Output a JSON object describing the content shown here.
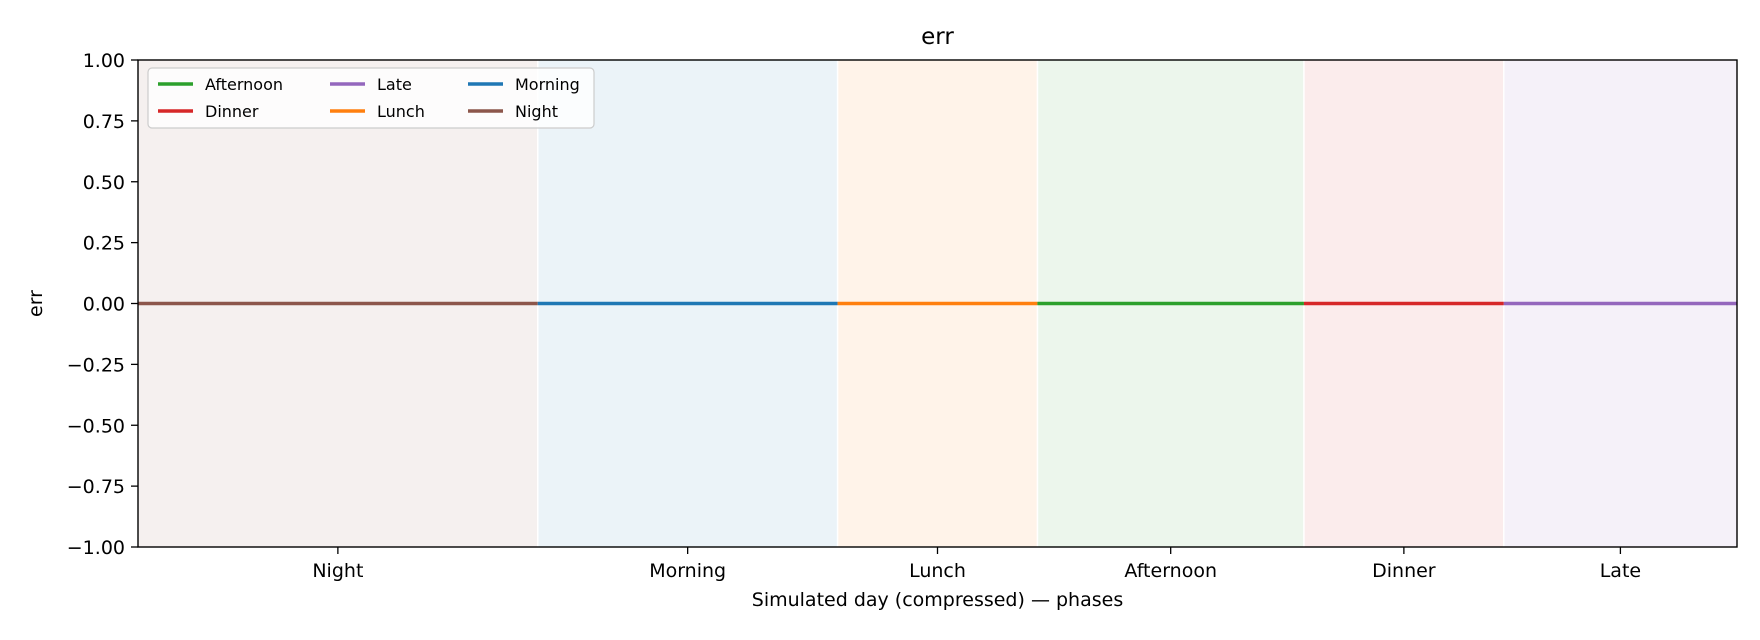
{
  "chart_data": {
    "type": "line",
    "title": "err",
    "xlabel": "Simulated day (compressed) — phases",
    "ylabel": "err",
    "ylim": [
      -1.0,
      1.0
    ],
    "yticks": [
      1.0,
      0.75,
      0.5,
      0.25,
      0.0,
      -0.25,
      -0.5,
      -0.75,
      -1.0
    ],
    "ytick_labels": [
      "1.00",
      "0.75",
      "0.50",
      "0.25",
      "0.00",
      "−0.25",
      "−0.50",
      "−0.75",
      "−1.00"
    ],
    "xlim": [
      0,
      24
    ],
    "grid": false,
    "legend_position": "top-left",
    "legend_columns": 3,
    "phases": [
      {
        "name": "Night",
        "start": 0,
        "end": 6,
        "color": "#8c564b"
      },
      {
        "name": "Morning",
        "start": 6,
        "end": 10.5,
        "color": "#1f77b4"
      },
      {
        "name": "Lunch",
        "start": 10.5,
        "end": 13.5,
        "color": "#ff7f0e"
      },
      {
        "name": "Afternoon",
        "start": 13.5,
        "end": 17.5,
        "color": "#2ca02c"
      },
      {
        "name": "Dinner",
        "start": 17.5,
        "end": 20.5,
        "color": "#d62728"
      },
      {
        "name": "Late",
        "start": 20.5,
        "end": 24,
        "color": "#9467bd"
      }
    ],
    "series": [
      {
        "name": "Night",
        "color": "#8c564b",
        "x": [
          0,
          6
        ],
        "y": [
          0,
          0
        ]
      },
      {
        "name": "Morning",
        "color": "#1f77b4",
        "x": [
          6,
          10.5
        ],
        "y": [
          0,
          0
        ]
      },
      {
        "name": "Lunch",
        "color": "#ff7f0e",
        "x": [
          10.5,
          13.5
        ],
        "y": [
          0,
          0
        ]
      },
      {
        "name": "Afternoon",
        "color": "#2ca02c",
        "x": [
          13.5,
          17.5
        ],
        "y": [
          0,
          0
        ]
      },
      {
        "name": "Dinner",
        "color": "#d62728",
        "x": [
          17.5,
          20.5
        ],
        "y": [
          0,
          0
        ]
      },
      {
        "name": "Late",
        "color": "#9467bd",
        "x": [
          20.5,
          24
        ],
        "y": [
          0,
          0
        ]
      }
    ],
    "legend_order": [
      "Afternoon",
      "Dinner",
      "Late",
      "Lunch",
      "Morning",
      "Night"
    ]
  }
}
